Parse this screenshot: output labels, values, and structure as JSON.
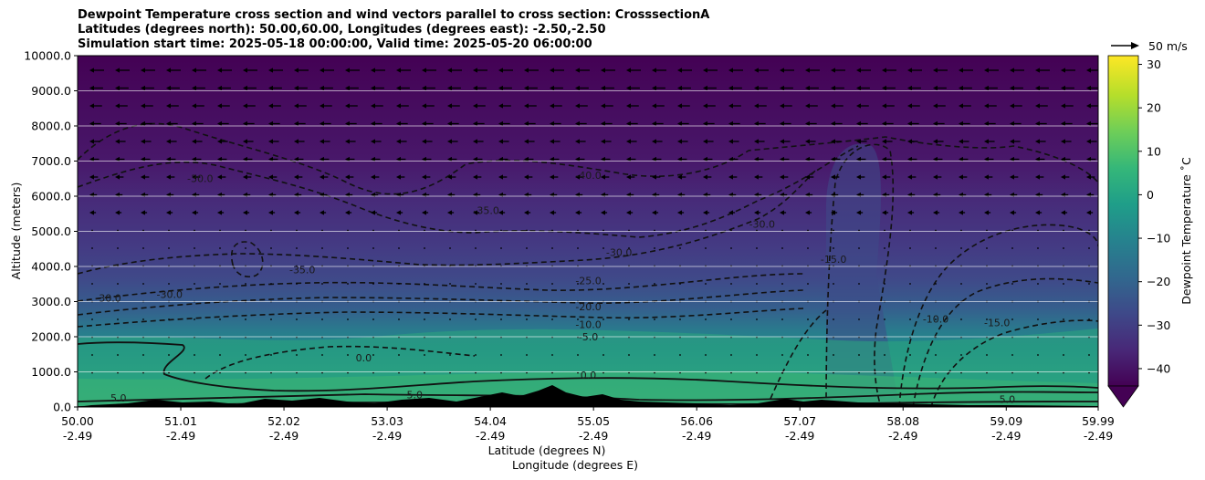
{
  "title_lines": [
    "Dewpoint Temperature cross section and wind vectors parallel to cross section: CrosssectionA",
    "Latitudes (degrees north): 50.00,60.00, Longitudes (degrees east): -2.50,-2.50",
    "Simulation start time: 2025-05-18 00:00:00, Valid time: 2025-05-20 06:00:00"
  ],
  "chart_data": {
    "type": "heatmap",
    "title": "Dewpoint Temperature cross section and wind vectors parallel to cross section: CrosssectionA",
    "ylabel": "Altitude (meters)",
    "xlabel_lines": [
      "Latitude (degrees N)",
      "Longitude (degrees E)"
    ],
    "ylim": [
      0,
      10000
    ],
    "y_ticks": [
      "0.0",
      "1000.0",
      "2000.0",
      "3000.0",
      "4000.0",
      "5000.0",
      "6000.0",
      "7000.0",
      "8000.0",
      "9000.0",
      "10000.0"
    ],
    "x_ticks": [
      {
        "lat": "50.00",
        "lon": "-2.49"
      },
      {
        "lat": "51.01",
        "lon": "-2.49"
      },
      {
        "lat": "52.02",
        "lon": "-2.49"
      },
      {
        "lat": "53.03",
        "lon": "-2.49"
      },
      {
        "lat": "54.04",
        "lon": "-2.49"
      },
      {
        "lat": "55.05",
        "lon": "-2.49"
      },
      {
        "lat": "56.06",
        "lon": "-2.49"
      },
      {
        "lat": "57.07",
        "lon": "-2.49"
      },
      {
        "lat": "58.08",
        "lon": "-2.49"
      },
      {
        "lat": "59.09",
        "lon": "-2.49"
      },
      {
        "lat": "59.99",
        "lon": "-2.49"
      }
    ],
    "colorbar": {
      "label": "Dewpoint Temperature ˚C",
      "ticks": [
        "-40",
        "-30",
        "-20",
        "-10",
        "0",
        "10",
        "20",
        "30"
      ],
      "range": [
        -44,
        32
      ],
      "extend": "min",
      "colormap": [
        "#440154",
        "#482878",
        "#3e4989",
        "#31688e",
        "#26828e",
        "#1f9e89",
        "#35b779",
        "#6ece58",
        "#b5de2b",
        "#fde725"
      ]
    },
    "wind_key": "50 m/s",
    "grid": "horizontal",
    "contour_labels": [
      {
        "text": "-30.0",
        "lat": 51.2,
        "alt": 6400
      },
      {
        "text": "-35.0",
        "lat": 52.2,
        "alt": 3800
      },
      {
        "text": "-30.0",
        "lat": 50.3,
        "alt": 3000
      },
      {
        "text": "-30.0",
        "lat": 50.9,
        "alt": 3100
      },
      {
        "text": "-35.0",
        "lat": 54.0,
        "alt": 5500
      },
      {
        "text": "-40.0",
        "lat": 55.0,
        "alt": 6500
      },
      {
        "text": "-30.0",
        "lat": 55.3,
        "alt": 4300
      },
      {
        "text": "-25.0",
        "lat": 55.0,
        "alt": 3500
      },
      {
        "text": "-20.0",
        "lat": 55.0,
        "alt": 2750
      },
      {
        "text": "-10.0",
        "lat": 55.0,
        "alt": 2250
      },
      {
        "text": "-5.0",
        "lat": 55.0,
        "alt": 1900
      },
      {
        "text": "0.0",
        "lat": 55.0,
        "alt": 800
      },
      {
        "text": "-30.0",
        "lat": 56.7,
        "alt": 5100
      },
      {
        "text": "-15.0",
        "lat": 57.4,
        "alt": 4100
      },
      {
        "text": "-10.0",
        "lat": 58.4,
        "alt": 2400
      },
      {
        "text": "-15.0",
        "lat": 59.0,
        "alt": 2300
      },
      {
        "text": "0.0",
        "lat": 52.8,
        "alt": 1300
      },
      {
        "text": "5.0",
        "lat": 50.4,
        "alt": 150
      },
      {
        "text": "5.0",
        "lat": 53.3,
        "alt": 250
      },
      {
        "text": "5.0",
        "lat": 59.1,
        "alt": 120
      }
    ]
  }
}
